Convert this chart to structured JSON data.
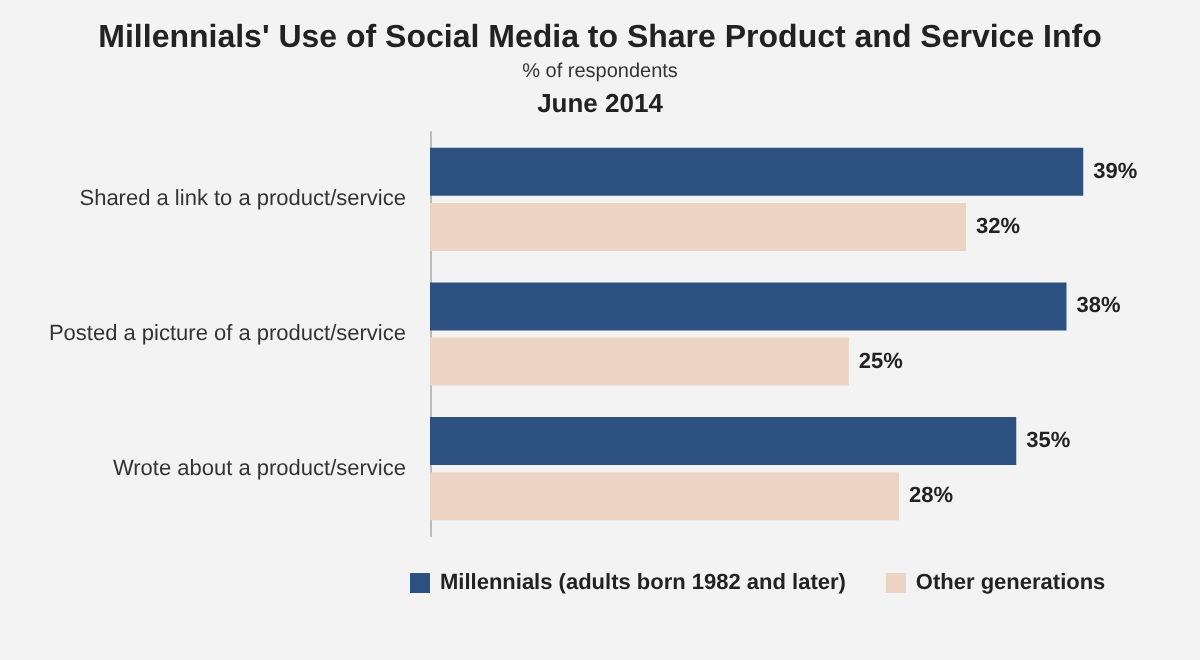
{
  "chart_data": {
    "type": "bar",
    "orientation": "horizontal",
    "title": "Millennials' Use of Social Media to Share Product and Service Info",
    "subtitle": "% of respondents",
    "annotations": [
      "June 2014"
    ],
    "categories": [
      "Shared a link to a product/service",
      "Posted a picture of a product/service",
      "Wrote about a product/service"
    ],
    "series": [
      {
        "name": "Millennials (adults born 1982 and later)",
        "color": "#2d5282",
        "values": [
          39,
          38,
          35
        ],
        "value_labels": [
          "39%",
          "38%",
          "35%"
        ]
      },
      {
        "name": "Other generations",
        "color": "#ecd3c3",
        "values": [
          32,
          25,
          28
        ],
        "value_labels": [
          "32%",
          "25%",
          "28%"
        ]
      }
    ],
    "legend": "bottom"
  }
}
